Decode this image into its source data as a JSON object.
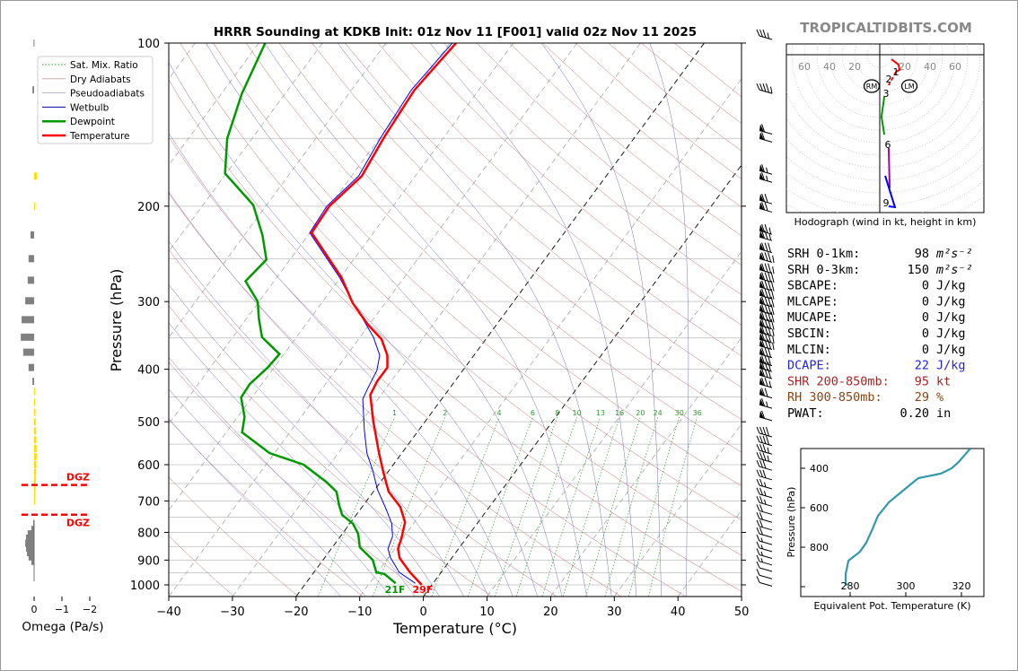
{
  "title": "HRRR Sounding at KDKB Init: 01z Nov 11 [F001] valid 02z Nov 11 2025",
  "logo": "TROPICALTIDBITS.COM",
  "colors": {
    "temperature": "#ff0000",
    "dewpoint": "#009900",
    "wetbulb": "#0000ff",
    "dry_adiabat": "#c07070",
    "moist_adiabat": "#7070c0",
    "mixing_ratio": "#339933",
    "theta_e": "#3399aa",
    "dgz": "#ff0000",
    "omega_up": "#ffdd00",
    "omega_down": "#808080"
  },
  "legend": [
    "Sat. Mix. Ratio",
    "Dry Adiabats",
    "Pseudoadiabats",
    "Wetbulb",
    "Dewpoint",
    "Temperature"
  ],
  "stats": [
    {
      "label": "SRH 0-1km:",
      "value": "98",
      "unit": "m²s⁻²",
      "color": "#000000"
    },
    {
      "label": "SRH 0-3km:",
      "value": "150",
      "unit": "m²s⁻²",
      "color": "#000000"
    },
    {
      "label": "SBCAPE:",
      "value": "0",
      "unit": "J/kg",
      "color": "#000000"
    },
    {
      "label": "MLCAPE:",
      "value": "0",
      "unit": "J/kg",
      "color": "#000000"
    },
    {
      "label": "MUCAPE:",
      "value": "0",
      "unit": "J/kg",
      "color": "#000000"
    },
    {
      "label": "SBCIN:",
      "value": "0",
      "unit": "J/kg",
      "color": "#000000"
    },
    {
      "label": "MLCIN:",
      "value": "0",
      "unit": "J/kg",
      "color": "#000000"
    },
    {
      "label": "DCAPE:",
      "value": "22",
      "unit": "J/kg",
      "color": "#2222dd"
    },
    {
      "label": "SHR 200-850mb:",
      "value": "95",
      "unit": "kt",
      "color": "#aa2222"
    },
    {
      "label": "RH 300-850mb:",
      "value": "29",
      "unit": "%",
      "color": "#8b4513"
    },
    {
      "label": "PWAT:",
      "value": "0.20",
      "unit": "in",
      "color": "#000000"
    }
  ],
  "chart_data": [
    {
      "type": "line",
      "name": "skewt",
      "xlabel": "Temperature (°C)",
      "ylabel": "Pressure (hPa)",
      "xlim": [
        -40,
        50
      ],
      "ylim": [
        1050,
        100
      ],
      "xticks": [
        "−40",
        "−30",
        "−20",
        "−10",
        "0",
        "10",
        "20",
        "30",
        "40",
        "50"
      ],
      "yticks": [
        "100",
        "200",
        "300",
        "400",
        "500",
        "600",
        "700",
        "800",
        "900",
        "1000"
      ],
      "mixing_ratio_labels": [
        "1",
        "2",
        "4",
        "6",
        "8",
        "10",
        "13",
        "16",
        "20",
        "24",
        "30",
        "36"
      ],
      "surface_labels": {
        "dewpoint": "21F",
        "temperature": "29F"
      },
      "temperature": [
        [
          1000,
          -1.6
        ],
        [
          948,
          -4.9
        ],
        [
          892,
          -8.2
        ],
        [
          858,
          -9.5
        ],
        [
          820,
          -10.2
        ],
        [
          766,
          -11.5
        ],
        [
          718,
          -14
        ],
        [
          673,
          -17.6
        ],
        [
          621,
          -20.6
        ],
        [
          571,
          -23.6
        ],
        [
          500,
          -28.1
        ],
        [
          446,
          -31.7
        ],
        [
          421,
          -32.2
        ],
        [
          397,
          -32.2
        ],
        [
          377,
          -33.6
        ],
        [
          352,
          -36.4
        ],
        [
          331,
          -40.2
        ],
        [
          302,
          -45.1
        ],
        [
          271,
          -49.8
        ],
        [
          224,
          -59.7
        ],
        [
          200,
          -60
        ],
        [
          176,
          -58.4
        ],
        [
          149,
          -59.4
        ],
        [
          122,
          -60.1
        ],
        [
          100,
          -59
        ]
      ],
      "dewpoint": [
        [
          993,
          -5.9
        ],
        [
          955,
          -8.7
        ],
        [
          948,
          -10.2
        ],
        [
          899,
          -12.2
        ],
        [
          852,
          -15.7
        ],
        [
          805,
          -17.5
        ],
        [
          771,
          -19.5
        ],
        [
          743,
          -22.2
        ],
        [
          715,
          -23.7
        ],
        [
          673,
          -25.8
        ],
        [
          645,
          -28.6
        ],
        [
          600,
          -34.1
        ],
        [
          571,
          -40.8
        ],
        [
          523,
          -47.5
        ],
        [
          490,
          -48.9
        ],
        [
          451,
          -51.7
        ],
        [
          426,
          -51.9
        ],
        [
          397,
          -51
        ],
        [
          375,
          -50.7
        ],
        [
          349,
          -55.4
        ],
        [
          322,
          -58.1
        ],
        [
          300,
          -60.2
        ],
        [
          275,
          -64.5
        ],
        [
          251,
          -63.7
        ],
        [
          226,
          -67.2
        ],
        [
          199,
          -72.1
        ],
        [
          174,
          -80.2
        ],
        [
          150,
          -83.9
        ],
        [
          124,
          -86.8
        ],
        [
          100,
          -89
        ]
      ],
      "wetbulb": [
        [
          993,
          -2.8
        ],
        [
          948,
          -6.6
        ],
        [
          892,
          -9.6
        ],
        [
          858,
          -11.1
        ],
        [
          814,
          -11.8
        ],
        [
          771,
          -13.4
        ],
        [
          726,
          -15.9
        ],
        [
          667,
          -19.6
        ],
        [
          616,
          -22.5
        ],
        [
          571,
          -25.5
        ],
        [
          519,
          -28.5
        ],
        [
          454,
          -32.4
        ],
        [
          432,
          -32.9
        ],
        [
          402,
          -33.5
        ],
        [
          377,
          -34.8
        ],
        [
          349,
          -37.9
        ],
        [
          324,
          -41.5
        ],
        [
          299,
          -45.5
        ],
        [
          271,
          -50.1
        ],
        [
          224,
          -60
        ],
        [
          200,
          -60.4
        ],
        [
          176,
          -58.9
        ],
        [
          149,
          -59.9
        ],
        [
          122,
          -60.6
        ],
        [
          100,
          -59.6
        ]
      ],
      "winds": [
        [
          100,
          35
        ],
        [
          122,
          45
        ],
        [
          145,
          60
        ],
        [
          150,
          60
        ],
        [
          172,
          65
        ],
        [
          178,
          65
        ],
        [
          195,
          70
        ],
        [
          202,
          70
        ],
        [
          222,
          75
        ],
        [
          228,
          75
        ],
        [
          240,
          80
        ],
        [
          250,
          85
        ],
        [
          262,
          85
        ],
        [
          272,
          90
        ],
        [
          282,
          90
        ],
        [
          292,
          90
        ],
        [
          302,
          90
        ],
        [
          312,
          90
        ],
        [
          322,
          90
        ],
        [
          332,
          90
        ],
        [
          342,
          85
        ],
        [
          352,
          85
        ],
        [
          362,
          85
        ],
        [
          375,
          80
        ],
        [
          388,
          80
        ],
        [
          398,
          80
        ],
        [
          410,
          80
        ],
        [
          426,
          75
        ],
        [
          445,
          70
        ],
        [
          465,
          65
        ],
        [
          490,
          60
        ],
        [
          525,
          40
        ],
        [
          545,
          40
        ],
        [
          565,
          35
        ],
        [
          585,
          35
        ],
        [
          605,
          30
        ],
        [
          630,
          30
        ],
        [
          655,
          25
        ],
        [
          680,
          25
        ],
        [
          705,
          25
        ],
        [
          730,
          20
        ],
        [
          755,
          20
        ],
        [
          780,
          20
        ],
        [
          805,
          20
        ],
        [
          830,
          15
        ],
        [
          855,
          15
        ],
        [
          880,
          15
        ],
        [
          905,
          15
        ],
        [
          930,
          10
        ],
        [
          960,
          10
        ],
        [
          990,
          10
        ]
      ]
    },
    {
      "type": "bar",
      "name": "omega",
      "xlabel": "Omega (Pa/s)",
      "xticks": [
        "0",
        "−1",
        "−2"
      ],
      "dgz_label": "DGZ",
      "dgz_bounds_hpa": [
        654,
        742
      ],
      "values": [
        [
          100,
          0.02
        ],
        [
          122,
          0.06
        ],
        [
          176,
          -0.1
        ],
        [
          200,
          -0.04
        ],
        [
          226,
          0.13
        ],
        [
          250,
          0.2
        ],
        [
          274,
          0.23
        ],
        [
          299,
          0.32
        ],
        [
          324,
          0.45
        ],
        [
          349,
          0.48
        ],
        [
          372,
          0.39
        ],
        [
          397,
          0.2
        ],
        [
          421,
          0.06
        ],
        [
          440,
          -0.03
        ],
        [
          460,
          -0.04
        ],
        [
          480,
          -0.05
        ],
        [
          500,
          -0.06
        ],
        [
          520,
          -0.07
        ],
        [
          540,
          -0.08
        ],
        [
          560,
          -0.09
        ],
        [
          580,
          -0.09
        ],
        [
          600,
          -0.08
        ],
        [
          620,
          -0.07
        ],
        [
          640,
          -0.06
        ],
        [
          660,
          -0.05
        ],
        [
          680,
          -0.04
        ],
        [
          700,
          -0.03
        ],
        [
          770,
          0.03
        ],
        [
          790,
          0.1
        ],
        [
          805,
          0.23
        ],
        [
          820,
          0.29
        ],
        [
          838,
          0.32
        ],
        [
          855,
          0.29
        ],
        [
          872,
          0.26
        ],
        [
          888,
          0.2
        ],
        [
          905,
          0.1
        ]
      ]
    },
    {
      "type": "line",
      "name": "hodograph",
      "caption": "Hodograph (wind in kt, height in km)",
      "ring_labels": [
        "60",
        "40",
        "20",
        "20",
        "40",
        "60"
      ],
      "height_labels": [
        "1",
        "2",
        "3",
        "6",
        "9"
      ],
      "storm_motion": [
        "RM",
        "LM"
      ],
      "segments": [
        {
          "color": "#ff0000",
          "points": [
            [
              9.3,
              -3.6
            ],
            [
              15,
              -7.9
            ],
            [
              15.7,
              -12.1
            ],
            [
              12.9,
              -13.6
            ]
          ]
        },
        {
          "color": "#ff0000",
          "dashed": true,
          "points": [
            [
              12.9,
              -13.6
            ],
            [
              7.1,
              -24.3
            ]
          ]
        },
        {
          "color": "#009900",
          "points": [
            [
              3.6,
              -33.6
            ],
            [
              1.4,
              -49.3
            ],
            [
              3.6,
              -63.6
            ]
          ]
        },
        {
          "color": "#aa00aa",
          "points": [
            [
              7.1,
              -74.3
            ],
            [
              7.9,
              -106.4
            ]
          ]
        },
        {
          "color": "#0000ff",
          "points": [
            [
              4.3,
              -96.4
            ],
            [
              12.1,
              -121.4
            ],
            [
              7.1,
              -120.7
            ]
          ]
        }
      ]
    },
    {
      "type": "line",
      "name": "theta_e",
      "xlabel": "Equivalent Pot. Temperature (K)",
      "ylabel": "Pressure (hPa)",
      "xticks": [
        "280",
        "300",
        "320"
      ],
      "yticks": [
        "400",
        "600",
        "800"
      ],
      "values": [
        [
          300,
          323.2
        ],
        [
          368,
          319
        ],
        [
          400,
          316.5
        ],
        [
          427,
          312.6
        ],
        [
          450,
          304.5
        ],
        [
          505,
          299.7
        ],
        [
          573,
          293.9
        ],
        [
          641,
          290
        ],
        [
          709,
          288
        ],
        [
          777,
          285.8
        ],
        [
          823,
          283.5
        ],
        [
          868,
          279.4
        ],
        [
          936,
          278.4
        ],
        [
          982,
          278.4
        ],
        [
          995,
          279
        ]
      ]
    }
  ]
}
